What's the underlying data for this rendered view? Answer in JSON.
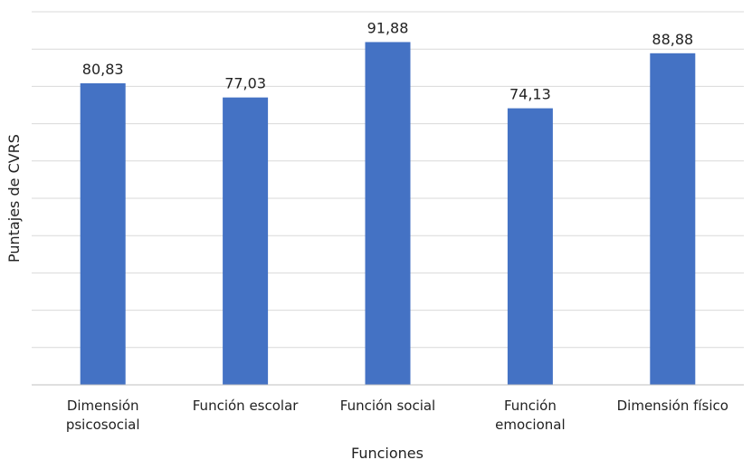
{
  "chart_data": {
    "type": "bar",
    "categories": [
      "Dimensión psicosocial",
      "Función escolar",
      "Función social",
      "Función emocional",
      "Dimensión físico"
    ],
    "category_lines": [
      [
        "Dimensión",
        "psicosocial"
      ],
      [
        "Función escolar"
      ],
      [
        "Función social"
      ],
      [
        "Función",
        "emocional"
      ],
      [
        "Dimensión físico"
      ]
    ],
    "values": [
      80.83,
      77.03,
      91.88,
      74.13,
      88.88
    ],
    "value_labels": [
      "80,83",
      "77,03",
      "91,88",
      "74,13",
      "88,88"
    ],
    "xlabel": "Funciones",
    "ylabel": "Puntajes de CVRS",
    "ylim": [
      0,
      100
    ],
    "ytick_step": 10,
    "grid": true,
    "bar_color": "#4472c4"
  }
}
